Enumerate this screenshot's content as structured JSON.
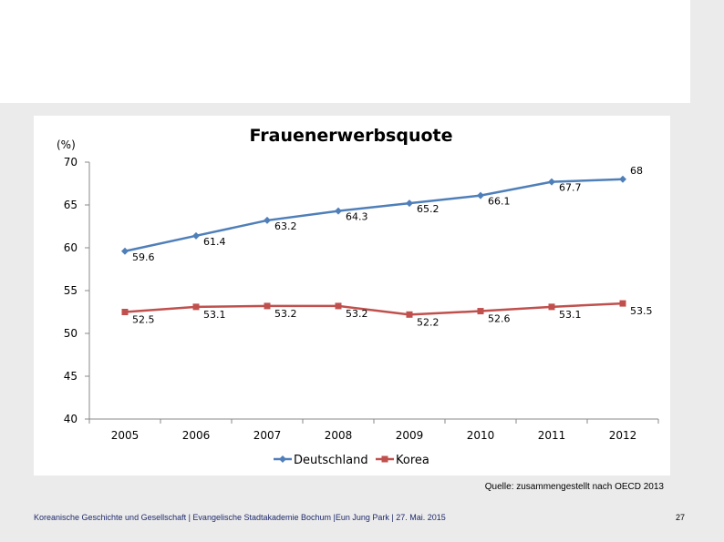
{
  "chart_data": {
    "type": "line",
    "title": "Frauenerwerbsquote",
    "ylabel": "(%)",
    "x": [
      "2005",
      "2006",
      "2007",
      "2008",
      "2009",
      "2010",
      "2011",
      "2012"
    ],
    "ylim": [
      40,
      70
    ],
    "yticks": [
      "70",
      "65",
      "60",
      "55",
      "50",
      "45",
      "40"
    ],
    "grid": false,
    "legend_position": "bottom",
    "series": [
      {
        "name": "Deutschland",
        "values": [
          59.6,
          61.4,
          63.2,
          64.3,
          65.2,
          66.1,
          67.7,
          68
        ],
        "labels": [
          "59.6",
          "61.4",
          "63.2",
          "64.3",
          "65.2",
          "66.1",
          "67.7",
          "68"
        ],
        "color": "#4f7fb9",
        "marker": "diamond"
      },
      {
        "name": "Korea",
        "values": [
          52.5,
          53.1,
          53.2,
          53.2,
          52.2,
          52.6,
          53.1,
          53.5
        ],
        "labels": [
          "52.5",
          "53.1",
          "53.2",
          "53.2",
          "52.2",
          "52.6",
          "53.1",
          "53.5"
        ],
        "color": "#c0504d",
        "marker": "square"
      }
    ]
  },
  "source_note": "Quelle: zusammengestellt nach OECD 2013",
  "footer": "Koreanische Geschichte und Gesellschaft | Evangelische Stadtakademie Bochum |Eun Jung Park | 27. Mai. 2015",
  "page_number": "27"
}
